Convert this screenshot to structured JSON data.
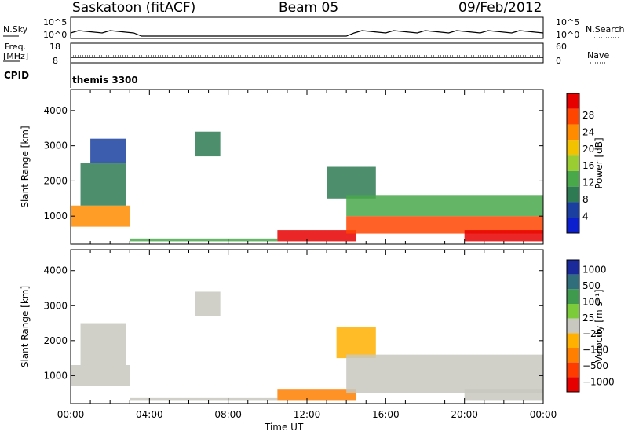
{
  "header": {
    "site": "Saskatoon (fitACF)",
    "beam": "Beam 05",
    "date": "09/Feb/2012"
  },
  "top_panels": {
    "nsky_label": "N.Sky",
    "nsky_ticks": [
      "10^5",
      "10^0"
    ],
    "nsearch_label": "N.Search",
    "nsearch_ticks": [
      "10^5",
      "10^0"
    ],
    "freq_label_1": "Freq.",
    "freq_label_2": "[MHz]",
    "freq_ticks": [
      "18",
      "8"
    ],
    "nave_label": "Nave",
    "nave_ticks": [
      "60",
      "0"
    ],
    "cpid_label": "CPID",
    "cpid_value": "themis 3300"
  },
  "colors": {
    "power_scale": [
      "#0b1fcf",
      "#1a3fa0",
      "#2e7a52",
      "#49a84a",
      "#9acd32",
      "#f2c200",
      "#ff8c00",
      "#ff4500",
      "#e60000"
    ],
    "velocity_scale": [
      "#1a2a9a",
      "#2f6e7a",
      "#3f9a4e",
      "#7ccb3a",
      "#c8c8c0",
      "#ffb000",
      "#ff7f00",
      "#ff3c00",
      "#e60000"
    ]
  },
  "chart_data": [
    {
      "type": "heatmap",
      "panel": "power",
      "ylabel": "Slant Range [km]",
      "yticks": [
        "1000",
        "2000",
        "3000",
        "4000"
      ],
      "ylim": [
        200,
        4600
      ],
      "x_ticks": [
        "00:00",
        "04:00",
        "08:00",
        "12:00",
        "16:00",
        "20:00",
        "00:00"
      ],
      "xlim_hours": [
        0,
        24
      ],
      "colorbar_label": "Power [dB]",
      "colorbar_ticks": [
        "4",
        "8",
        "12",
        "16",
        "20",
        "24",
        "28"
      ],
      "regions": [
        {
          "t0": 0.0,
          "t1": 3.0,
          "r0": 700,
          "r1": 1300,
          "level": 6
        },
        {
          "t0": 0.5,
          "t1": 2.8,
          "r0": 1300,
          "r1": 2500,
          "level": 2
        },
        {
          "t0": 1.0,
          "t1": 2.8,
          "r0": 2500,
          "r1": 3200,
          "level": 1
        },
        {
          "t0": 3.0,
          "t1": 10.5,
          "r0": 280,
          "r1": 360,
          "level": 3
        },
        {
          "t0": 6.3,
          "t1": 7.6,
          "r0": 2700,
          "r1": 3400,
          "level": 2
        },
        {
          "t0": 10.5,
          "t1": 14.5,
          "r0": 280,
          "r1": 600,
          "level": 8
        },
        {
          "t0": 13.0,
          "t1": 15.5,
          "r0": 1500,
          "r1": 2400,
          "level": 2
        },
        {
          "t0": 14.0,
          "t1": 24.0,
          "r0": 500,
          "r1": 1000,
          "level": 7
        },
        {
          "t0": 14.0,
          "t1": 24.0,
          "r0": 1000,
          "r1": 1600,
          "level": 3
        },
        {
          "t0": 20.0,
          "t1": 24.0,
          "r0": 280,
          "r1": 600,
          "level": 8
        }
      ]
    },
    {
      "type": "heatmap",
      "panel": "velocity",
      "ylabel": "Slant Range [km]",
      "yticks": [
        "1000",
        "2000",
        "3000",
        "4000"
      ],
      "ylim": [
        200,
        4600
      ],
      "x_ticks": [
        "00:00",
        "04:00",
        "08:00",
        "12:00",
        "16:00",
        "20:00",
        "00:00"
      ],
      "xlim_hours": [
        0,
        24
      ],
      "xlabel": "Time UT",
      "colorbar_label": "Velocity [m s⁻¹]",
      "colorbar_ticks": [
        "1000",
        "500",
        "100",
        "25",
        "−25",
        "−100",
        "−500",
        "−1000"
      ],
      "regions": [
        {
          "t0": 0.0,
          "t1": 3.0,
          "r0": 700,
          "r1": 1300,
          "level": 4
        },
        {
          "t0": 0.5,
          "t1": 2.8,
          "r0": 1300,
          "r1": 2500,
          "level": 4
        },
        {
          "t0": 3.0,
          "t1": 10.5,
          "r0": 280,
          "r1": 360,
          "level": 4
        },
        {
          "t0": 6.3,
          "t1": 7.6,
          "r0": 2700,
          "r1": 3400,
          "level": 4
        },
        {
          "t0": 10.5,
          "t1": 14.5,
          "r0": 280,
          "r1": 600,
          "level": 6
        },
        {
          "t0": 13.5,
          "t1": 15.5,
          "r0": 1500,
          "r1": 2400,
          "level": 5
        },
        {
          "t0": 14.0,
          "t1": 24.0,
          "r0": 500,
          "r1": 1600,
          "level": 4
        },
        {
          "t0": 20.0,
          "t1": 24.0,
          "r0": 280,
          "r1": 600,
          "level": 4
        }
      ]
    }
  ]
}
